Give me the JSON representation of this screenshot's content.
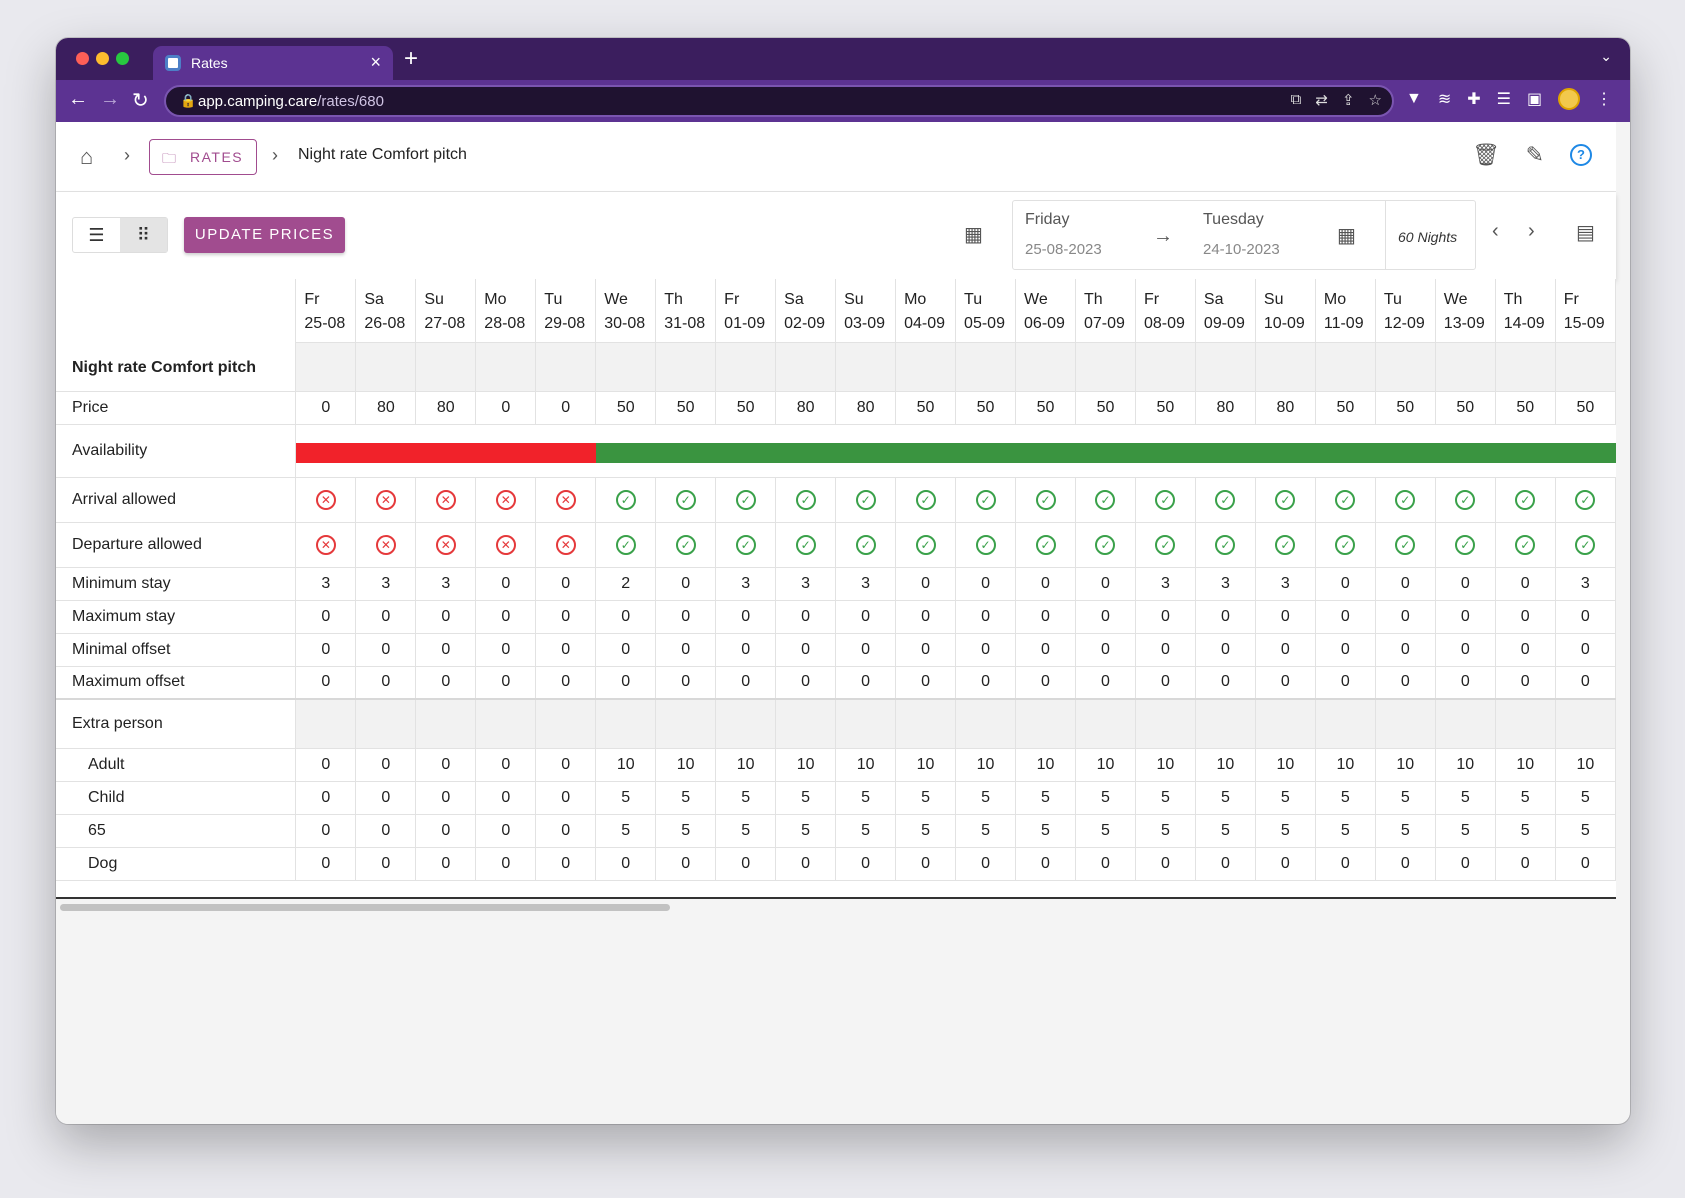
{
  "browser": {
    "tab_title": "Rates",
    "url_host": "app.camping.care",
    "url_path": "/rates/680"
  },
  "breadcrumb": {
    "rates_label": "RATES",
    "current": "Night rate Comfort pitch"
  },
  "controls": {
    "update_label": "UPDATE PRICES",
    "from_day": "Friday",
    "from_date": "25-08-2023",
    "to_day": "Tuesday",
    "to_date": "24-10-2023",
    "nights": "60 Nights"
  },
  "grid": {
    "title": "Night rate Comfort pitch",
    "days": [
      {
        "wd": "Fr",
        "d": "25-08"
      },
      {
        "wd": "Sa",
        "d": "26-08"
      },
      {
        "wd": "Su",
        "d": "27-08"
      },
      {
        "wd": "Mo",
        "d": "28-08"
      },
      {
        "wd": "Tu",
        "d": "29-08"
      },
      {
        "wd": "We",
        "d": "30-08"
      },
      {
        "wd": "Th",
        "d": "31-08"
      },
      {
        "wd": "Fr",
        "d": "01-09"
      },
      {
        "wd": "Sa",
        "d": "02-09"
      },
      {
        "wd": "Su",
        "d": "03-09"
      },
      {
        "wd": "Mo",
        "d": "04-09"
      },
      {
        "wd": "Tu",
        "d": "05-09"
      },
      {
        "wd": "We",
        "d": "06-09"
      },
      {
        "wd": "Th",
        "d": "07-09"
      },
      {
        "wd": "Fr",
        "d": "08-09"
      },
      {
        "wd": "Sa",
        "d": "09-09"
      },
      {
        "wd": "Su",
        "d": "10-09"
      },
      {
        "wd": "Mo",
        "d": "11-09"
      },
      {
        "wd": "Tu",
        "d": "12-09"
      },
      {
        "wd": "We",
        "d": "13-09"
      },
      {
        "wd": "Th",
        "d": "14-09"
      },
      {
        "wd": "Fr",
        "d": "15-09"
      }
    ],
    "labels": {
      "price": "Price",
      "availability": "Availability",
      "arrival": "Arrival allowed",
      "departure": "Departure allowed",
      "min_stay": "Minimum stay",
      "max_stay": "Maximum stay",
      "min_offset": "Minimal offset",
      "max_offset": "Maximum offset",
      "extra_person": "Extra person",
      "adult": "Adult",
      "child": "Child",
      "senior": "65",
      "dog": "Dog"
    },
    "price": [
      0,
      80,
      80,
      0,
      0,
      50,
      50,
      50,
      80,
      80,
      50,
      50,
      50,
      50,
      50,
      80,
      80,
      50,
      50,
      50,
      50,
      50
    ],
    "availability": [
      false,
      false,
      false,
      false,
      false,
      true,
      true,
      true,
      true,
      true,
      true,
      true,
      true,
      true,
      true,
      true,
      true,
      true,
      true,
      true,
      true,
      true
    ],
    "arrival": [
      false,
      false,
      false,
      false,
      false,
      true,
      true,
      true,
      true,
      true,
      true,
      true,
      true,
      true,
      true,
      true,
      true,
      true,
      true,
      true,
      true,
      true
    ],
    "departure": [
      false,
      false,
      false,
      false,
      false,
      true,
      true,
      true,
      true,
      true,
      true,
      true,
      true,
      true,
      true,
      true,
      true,
      true,
      true,
      true,
      true,
      true
    ],
    "min_stay": [
      3,
      3,
      3,
      0,
      0,
      2,
      0,
      3,
      3,
      3,
      0,
      0,
      0,
      0,
      3,
      3,
      3,
      0,
      0,
      0,
      0,
      3
    ],
    "max_stay": [
      0,
      0,
      0,
      0,
      0,
      0,
      0,
      0,
      0,
      0,
      0,
      0,
      0,
      0,
      0,
      0,
      0,
      0,
      0,
      0,
      0,
      0
    ],
    "min_offset": [
      0,
      0,
      0,
      0,
      0,
      0,
      0,
      0,
      0,
      0,
      0,
      0,
      0,
      0,
      0,
      0,
      0,
      0,
      0,
      0,
      0,
      0
    ],
    "max_offset": [
      0,
      0,
      0,
      0,
      0,
      0,
      0,
      0,
      0,
      0,
      0,
      0,
      0,
      0,
      0,
      0,
      0,
      0,
      0,
      0,
      0,
      0
    ],
    "adult": [
      0,
      0,
      0,
      0,
      0,
      10,
      10,
      10,
      10,
      10,
      10,
      10,
      10,
      10,
      10,
      10,
      10,
      10,
      10,
      10,
      10,
      10
    ],
    "child": [
      0,
      0,
      0,
      0,
      0,
      5,
      5,
      5,
      5,
      5,
      5,
      5,
      5,
      5,
      5,
      5,
      5,
      5,
      5,
      5,
      5,
      5
    ],
    "senior": [
      0,
      0,
      0,
      0,
      0,
      5,
      5,
      5,
      5,
      5,
      5,
      5,
      5,
      5,
      5,
      5,
      5,
      5,
      5,
      5,
      5,
      5
    ],
    "dog": [
      0,
      0,
      0,
      0,
      0,
      0,
      0,
      0,
      0,
      0,
      0,
      0,
      0,
      0,
      0,
      0,
      0,
      0,
      0,
      0,
      0,
      0
    ]
  },
  "colors": {
    "accent": "#a14c8f",
    "available": "#3a9440",
    "unavailable": "#f1222a",
    "ok": "#3aa14a",
    "no": "#e5393b"
  }
}
